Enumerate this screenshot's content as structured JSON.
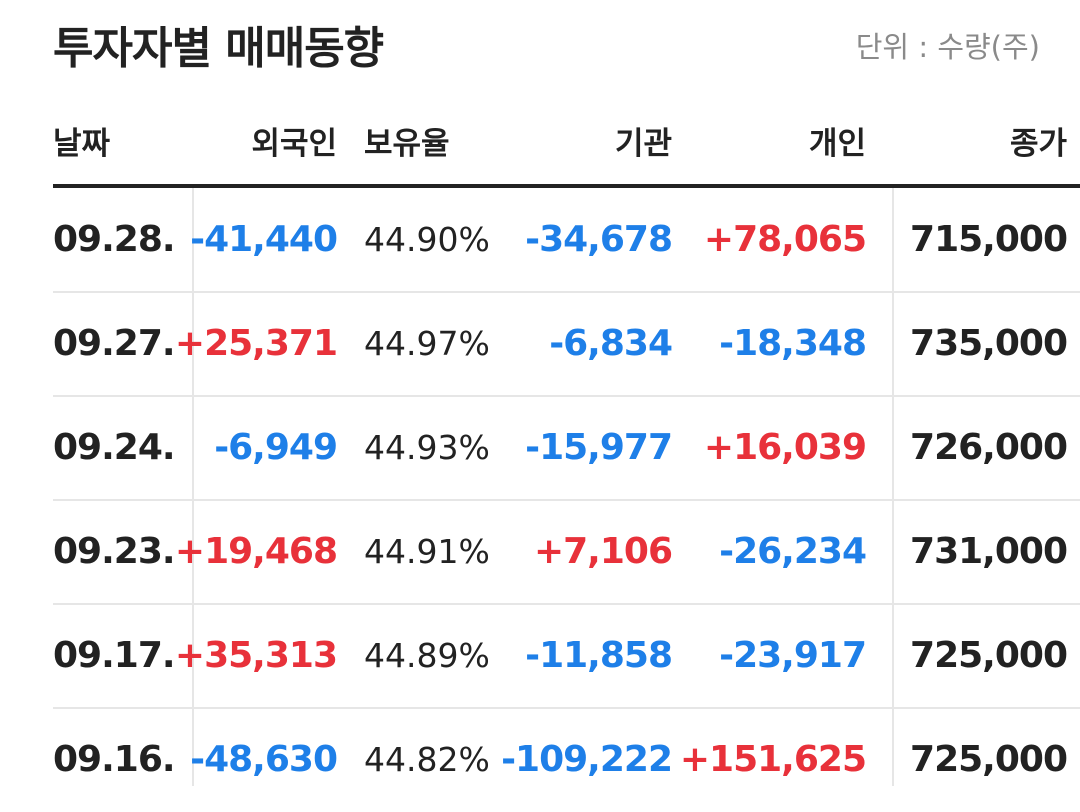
{
  "header": {
    "title": "투자자별 매매동향",
    "unit": "단위 : 수량(주)"
  },
  "table": {
    "columns": [
      "날짜",
      "외국인",
      "보유율",
      "기관",
      "개인",
      "종가"
    ],
    "rows": [
      [
        "09.28.",
        "-41,440",
        "44.90%",
        "-34,678",
        "+78,065",
        "715,000"
      ],
      [
        "09.27.",
        "+25,371",
        "44.97%",
        "-6,834",
        "-18,348",
        "735,000"
      ],
      [
        "09.24.",
        "-6,949",
        "44.93%",
        "-15,977",
        "+16,039",
        "726,000"
      ],
      [
        "09.23.",
        "+19,468",
        "44.91%",
        "+7,106",
        "-26,234",
        "731,000"
      ],
      [
        "09.17.",
        "+35,313",
        "44.89%",
        "-11,858",
        "-23,917",
        "725,000"
      ],
      [
        "09.16.",
        "-48,630",
        "44.82%",
        "-109,222",
        "+151,625",
        "725,000"
      ]
    ]
  }
}
